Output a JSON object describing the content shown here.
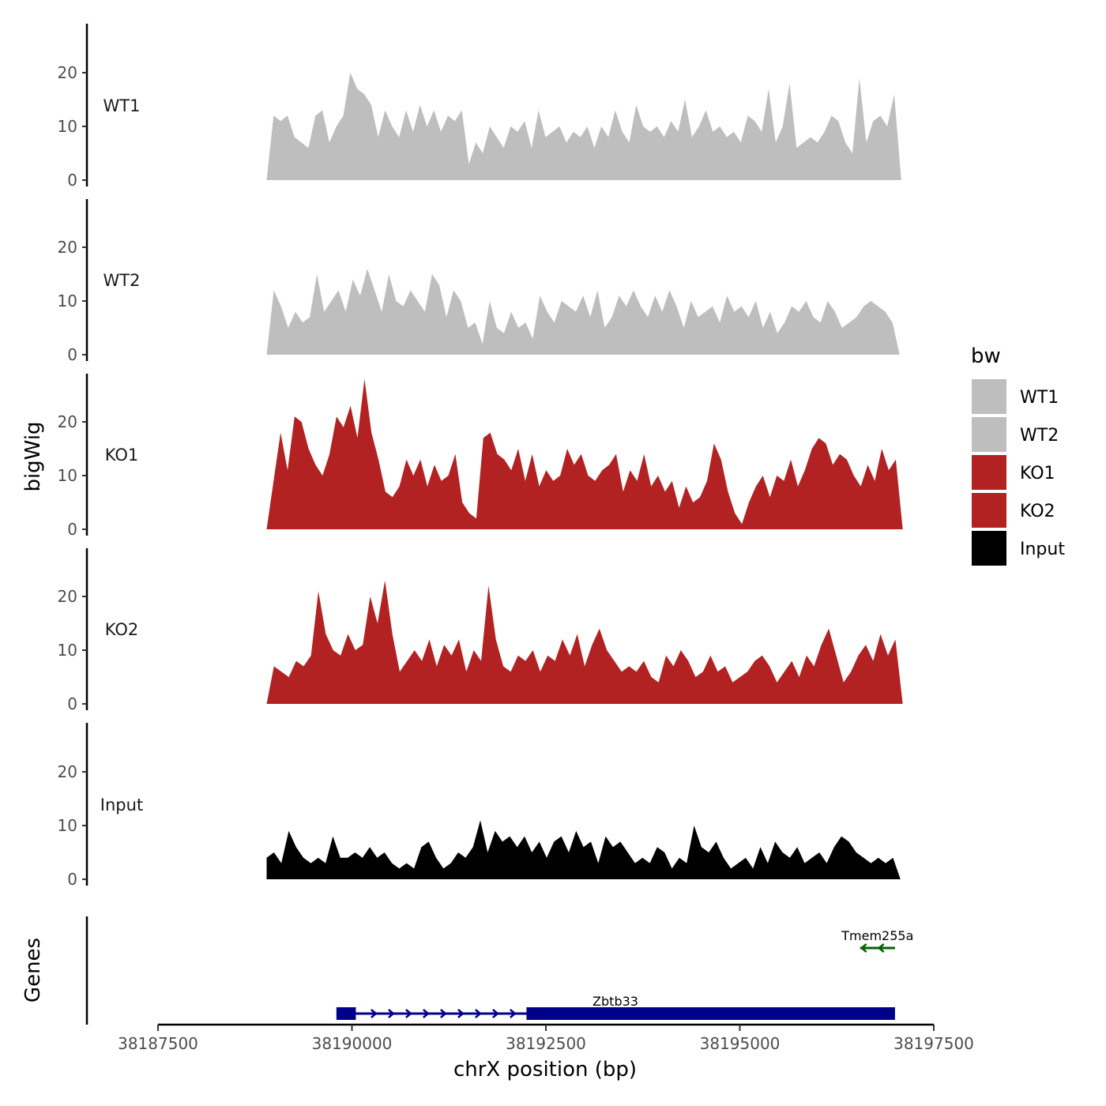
{
  "chart_data": {
    "type": "area",
    "ylabel": "bigWig",
    "xlabel": "chrX position (bp)",
    "ylim": [
      0,
      29
    ],
    "yticks": [
      0,
      10,
      20
    ],
    "xlim": [
      38187500,
      38197500
    ],
    "xticks": [
      38187500,
      38190000,
      38192500,
      38195000,
      38197500
    ],
    "legend": {
      "title": "bw",
      "position": "right",
      "entries": [
        {
          "label": "WT1",
          "color": "#bebebe"
        },
        {
          "label": "WT2",
          "color": "#bebebe"
        },
        {
          "label": "KO1",
          "color": "#b22222"
        },
        {
          "label": "KO2",
          "color": "#b22222"
        },
        {
          "label": "Input",
          "color": "#000000"
        }
      ]
    },
    "series": [
      {
        "name": "WT1",
        "color": "#bebebe",
        "x_start": 38188900,
        "x_end": 38197080,
        "values": [
          0,
          12,
          11,
          12,
          8,
          7,
          6,
          12,
          13,
          7,
          10,
          12,
          20,
          17,
          16,
          14,
          8,
          13,
          10,
          8,
          13,
          9,
          14,
          10,
          13,
          9,
          12,
          11,
          13,
          3,
          7,
          5,
          10,
          8,
          6,
          10,
          9,
          11,
          6,
          13,
          8,
          9,
          10,
          7,
          9,
          8,
          10,
          6,
          10,
          8,
          13,
          9,
          7,
          14,
          10,
          9,
          10,
          8,
          11,
          9,
          15,
          8,
          10,
          13,
          9,
          10,
          8,
          9,
          7,
          12,
          11,
          9,
          17,
          7,
          10,
          18,
          6,
          7,
          8,
          7,
          9,
          12,
          11,
          7,
          5,
          19,
          7,
          11,
          12,
          10,
          16,
          0
        ]
      },
      {
        "name": "WT2",
        "color": "#bebebe",
        "x_start": 38188900,
        "x_end": 38197060,
        "values": [
          0,
          12,
          9,
          5,
          8,
          6,
          7,
          15,
          8,
          10,
          12,
          8,
          14,
          11,
          16,
          12,
          8,
          15,
          10,
          9,
          12,
          10,
          8,
          15,
          13,
          7,
          12,
          10,
          5,
          6,
          2,
          10,
          5,
          4,
          8,
          5,
          6,
          3,
          11,
          8,
          6,
          10,
          9,
          8,
          11,
          7,
          12,
          5,
          7,
          11,
          9,
          12,
          9,
          7,
          11,
          8,
          12,
          9,
          5,
          10,
          7,
          8,
          9,
          6,
          11,
          8,
          9,
          7,
          10,
          5,
          8,
          4,
          6,
          9,
          8,
          10,
          7,
          6,
          10,
          8,
          5,
          6,
          7,
          9,
          10,
          9,
          8,
          6,
          0
        ]
      },
      {
        "name": "KO1",
        "color": "#b22222",
        "x_start": 38188900,
        "x_end": 38197100,
        "values": [
          0,
          9,
          18,
          11,
          21,
          20,
          15,
          12,
          10,
          14,
          21,
          19,
          23,
          17,
          28,
          18,
          13,
          7,
          6,
          8,
          13,
          10,
          13,
          8,
          12,
          9,
          10,
          14,
          5,
          3,
          2,
          17,
          18,
          14,
          13,
          11,
          15,
          9,
          14,
          8,
          11,
          9,
          10,
          15,
          12,
          14,
          10,
          9,
          11,
          12,
          14,
          7,
          11,
          9,
          14,
          8,
          10,
          7,
          9,
          4,
          8,
          5,
          6,
          9,
          16,
          13,
          7,
          3,
          1,
          5,
          8,
          10,
          6,
          10,
          9,
          13,
          8,
          11,
          15,
          17,
          16,
          12,
          14,
          13,
          10,
          8,
          12,
          9,
          15,
          11,
          13,
          0
        ]
      },
      {
        "name": "KO2",
        "color": "#b22222",
        "x_start": 38188900,
        "x_end": 38197100,
        "values": [
          0,
          7,
          6,
          5,
          8,
          7,
          9,
          21,
          13,
          10,
          9,
          13,
          10,
          11,
          20,
          15,
          23,
          13,
          6,
          8,
          10,
          8,
          12,
          7,
          11,
          9,
          12,
          6,
          10,
          8,
          22,
          12,
          7,
          6,
          9,
          8,
          10,
          6,
          9,
          8,
          12,
          9,
          13,
          7,
          11,
          14,
          10,
          8,
          6,
          7,
          6,
          8,
          5,
          4,
          9,
          7,
          10,
          8,
          5,
          6,
          9,
          6,
          7,
          4,
          5,
          6,
          8,
          9,
          7,
          4,
          6,
          8,
          5,
          9,
          7,
          11,
          14,
          9,
          4,
          6,
          9,
          11,
          8,
          13,
          9,
          12,
          0
        ]
      },
      {
        "name": "Input",
        "color": "#000000",
        "x_start": 38188900,
        "x_end": 38197070,
        "values": [
          4,
          5,
          3,
          9,
          6,
          4,
          3,
          4,
          3,
          8,
          4,
          4,
          5,
          4,
          6,
          4,
          5,
          3,
          2,
          3,
          2,
          6,
          7,
          4,
          2,
          3,
          5,
          4,
          6,
          11,
          5,
          9,
          7,
          8,
          6,
          8,
          5,
          7,
          4,
          7,
          8,
          5,
          9,
          6,
          7,
          3,
          8,
          6,
          7,
          5,
          3,
          4,
          3,
          6,
          5,
          2,
          4,
          3,
          10,
          6,
          5,
          7,
          4,
          2,
          3,
          4,
          2,
          6,
          3,
          7,
          5,
          4,
          6,
          3,
          4,
          5,
          3,
          6,
          8,
          7,
          5,
          4,
          3,
          4,
          3,
          4,
          0
        ]
      }
    ],
    "genes": {
      "axis_label": "Genes",
      "items": [
        {
          "name": "Zbtb33",
          "start": 38189800,
          "end": 38197000,
          "strand": "+",
          "color": "#00008b",
          "exons": [
            [
              38189800,
              38190050
            ],
            [
              38192250,
              38197000
            ]
          ]
        },
        {
          "name": "Tmem255a",
          "start": 38196550,
          "end": 38197000,
          "strand": "-",
          "color": "#006400",
          "exons": []
        }
      ]
    }
  }
}
